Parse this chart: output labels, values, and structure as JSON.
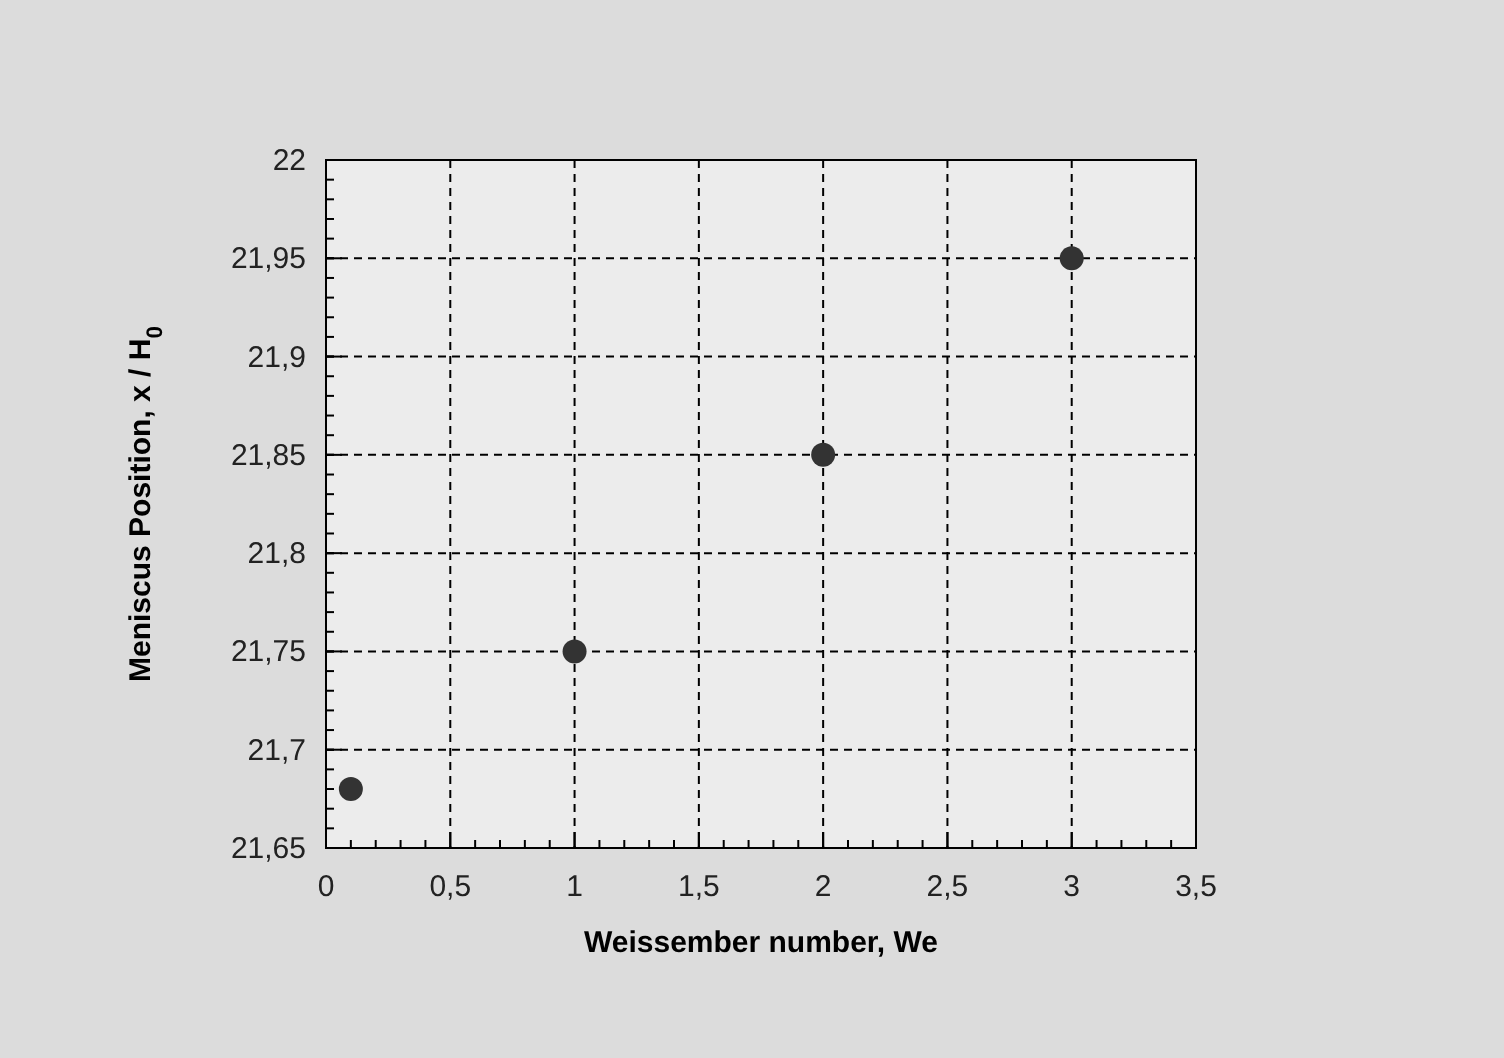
{
  "chart_data": {
    "type": "scatter",
    "xlabel": "Weissember number, We",
    "ylabel": "Meniscus Position, x / H$_{0}$",
    "x": [
      0.1,
      1,
      2,
      3
    ],
    "series": [
      {
        "color": "#333333",
        "values": [
          21.68,
          21.75,
          21.85,
          21.95
        ]
      }
    ],
    "xlim": [
      0,
      3.5
    ],
    "xticks": [
      0,
      {
        "value": 0.5,
        "label": "0,5"
      },
      1,
      {
        "value": 1.5,
        "label": "1,5"
      },
      2,
      {
        "value": 2.5,
        "label": "2,5"
      },
      3,
      {
        "value": 3.5,
        "label": "3,5"
      }
    ],
    "ylim": [
      21.65,
      22
    ],
    "yticks": [
      {
        "value": 21.65,
        "label": "21,65"
      },
      {
        "value": 21.7,
        "label": "21,7"
      },
      {
        "value": 21.75,
        "label": "21,75"
      },
      {
        "value": 21.8,
        "label": "21,8"
      },
      {
        "value": 21.85,
        "label": "21,85"
      },
      {
        "value": 21.9,
        "label": "21,9"
      },
      {
        "value": 21.95,
        "label": "21,95"
      },
      22
    ],
    "grid": true,
    "marker": "circle"
  }
}
